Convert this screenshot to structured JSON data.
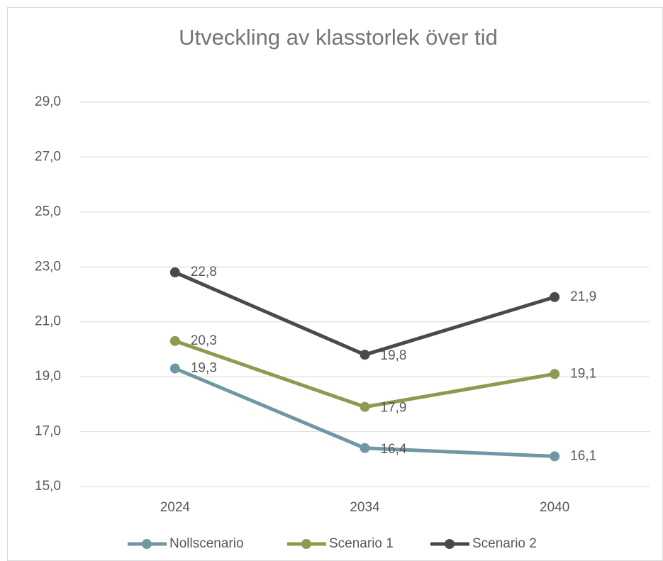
{
  "chart_data": {
    "type": "line",
    "title": "Utveckling av klasstorlek över tid",
    "categories": [
      "2024",
      "2034",
      "2040"
    ],
    "series": [
      {
        "name": "Nollscenario",
        "color": "#6f98a4",
        "values": [
          19.3,
          16.4,
          16.1
        ],
        "value_labels": [
          "19,3",
          "16,4",
          "16,1"
        ]
      },
      {
        "name": "Scenario 1",
        "color": "#8d9a50",
        "values": [
          20.3,
          17.9,
          19.1
        ],
        "value_labels": [
          "20,3",
          "17,9",
          "19,1"
        ]
      },
      {
        "name": "Scenario 2",
        "color": "#4a4a4a",
        "values": [
          22.8,
          19.8,
          21.9
        ],
        "value_labels": [
          "22,8",
          "19,8",
          "21,9"
        ]
      }
    ],
    "ylim": [
      15,
      29
    ],
    "yticks": [
      {
        "value": 15,
        "label": "15,0"
      },
      {
        "value": 17,
        "label": "17,0"
      },
      {
        "value": 19,
        "label": "19,0"
      },
      {
        "value": 21,
        "label": "21,0"
      },
      {
        "value": 23,
        "label": "23,0"
      },
      {
        "value": 25,
        "label": "25,0"
      },
      {
        "value": 27,
        "label": "27,0"
      },
      {
        "value": 29,
        "label": "29,0"
      }
    ],
    "grid": true,
    "legend": "bottom"
  }
}
